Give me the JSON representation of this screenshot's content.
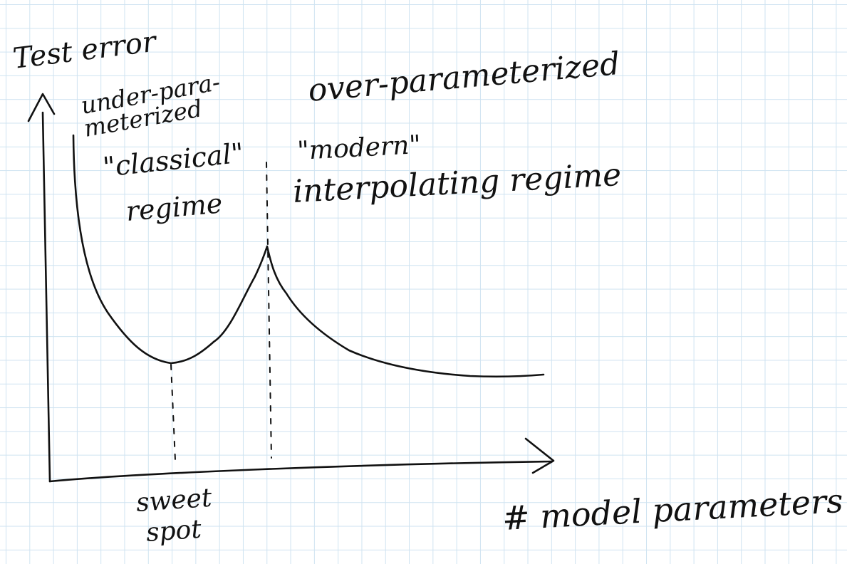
{
  "diagram": {
    "y_axis_label": "Test error",
    "x_axis_label": "# model parameters",
    "classical_regime": {
      "line1": "under-para-",
      "line2": "meterized",
      "line3": "\"classical\"",
      "line4": "regime"
    },
    "modern_regime": {
      "line1": "over-parameterized",
      "line2": "\"modern\"",
      "line3": "interpolating regime"
    },
    "sweet_spot": {
      "line1": "sweet",
      "line2": "spot"
    },
    "ink_color": "#111111",
    "grid_color": "#cfe3f1"
  }
}
